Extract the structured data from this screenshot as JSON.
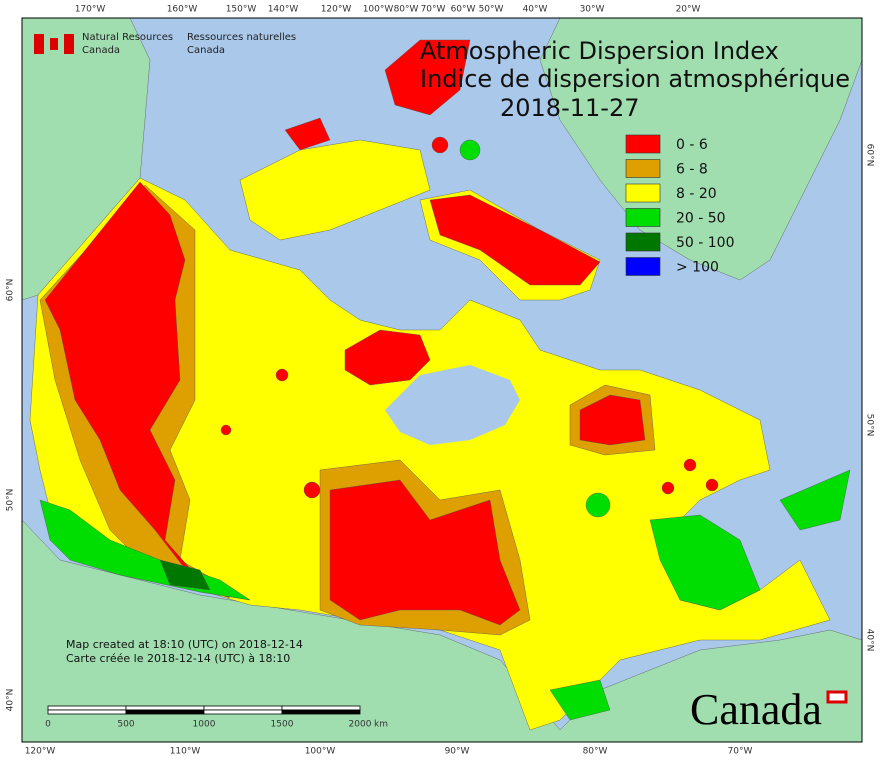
{
  "header": {
    "agency_en_1": "Natural Resources",
    "agency_en_2": "Canada",
    "agency_fr_1": "Ressources naturelles",
    "agency_fr_2": "Canada"
  },
  "title": {
    "en": "Atmospheric Dispersion Index",
    "fr": "Indice de dispersion atmosphérique",
    "date": "2018-11-27"
  },
  "legend": [
    {
      "label": "0 - 6",
      "color": "#ff0000"
    },
    {
      "label": "6 - 8",
      "color": "#dda000"
    },
    {
      "label": "8 - 20",
      "color": "#ffff00"
    },
    {
      "label": "20 - 50",
      "color": "#00dd00"
    },
    {
      "label": "50 - 100",
      "color": "#007800"
    },
    {
      "label": "> 100",
      "color": "#0000ff"
    }
  ],
  "graticule": {
    "top": [
      "170°W",
      "160°W",
      "150°W",
      "140°W",
      "120°W",
      "100°W",
      "80°W",
      "70°W",
      "60°W",
      "50°W",
      "40°W",
      "30°W",
      "20°W"
    ],
    "bottom": [
      "120°W",
      "110°W",
      "100°W",
      "90°W",
      "80°W",
      "70°W"
    ],
    "left": [
      "60°N",
      "50°N",
      "40°N"
    ],
    "right": [
      "60°N",
      "50°N",
      "40°N"
    ]
  },
  "notes": [
    "Map created at 18:10 (UTC) on 2018-12-14",
    "Carte créée le 2018-12-14 (UTC) à 18:10"
  ],
  "scale_bar": {
    "labels": [
      "0",
      "500",
      "1000",
      "1500",
      "2000"
    ],
    "unit": "km"
  },
  "wordmark": "Canada"
}
